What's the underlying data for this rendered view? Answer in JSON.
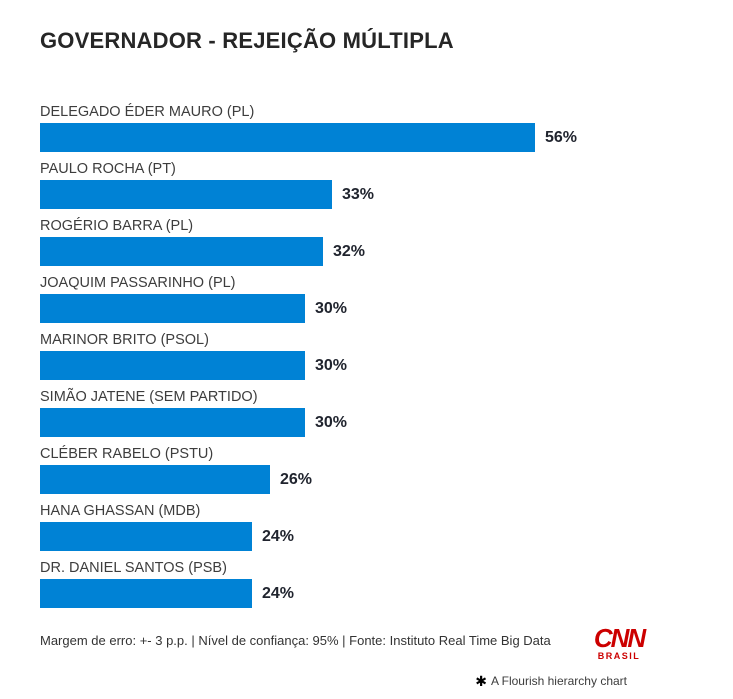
{
  "title": "GOVERNADOR - REJEIÇÃO MÚLTIPLA",
  "chart_data": {
    "type": "bar",
    "orientation": "horizontal",
    "categories": [
      "DELEGADO ÉDER MAURO (PL)",
      "PAULO ROCHA (PT)",
      "ROGÉRIO BARRA (PL)",
      "JOAQUIM PASSARINHO (PL)",
      "MARINOR BRITO (PSOL)",
      "SIMÃO JATENE (SEM PARTIDO)",
      "CLÉBER RABELO (PSTU)",
      "HANA GHASSAN (MDB)",
      "DR. DANIEL SANTOS (PSB)"
    ],
    "values": [
      56,
      33,
      32,
      30,
      30,
      30,
      26,
      24,
      24
    ],
    "value_suffix": "%",
    "xlim": [
      0,
      56
    ],
    "bar_color": "#0082d5",
    "grid": false,
    "legend": "none",
    "data_labels": true
  },
  "footer": {
    "note": "Margem de erro: +- 3 p.p. | Nível de confiança: 95% | Fonte: Instituto Real Time Big Data",
    "logo": {
      "line1": "CNN",
      "line2": "BRASIL",
      "color": "#cc0000"
    },
    "attribution": {
      "icon": "✱",
      "text": "A Flourish hierarchy chart"
    }
  }
}
